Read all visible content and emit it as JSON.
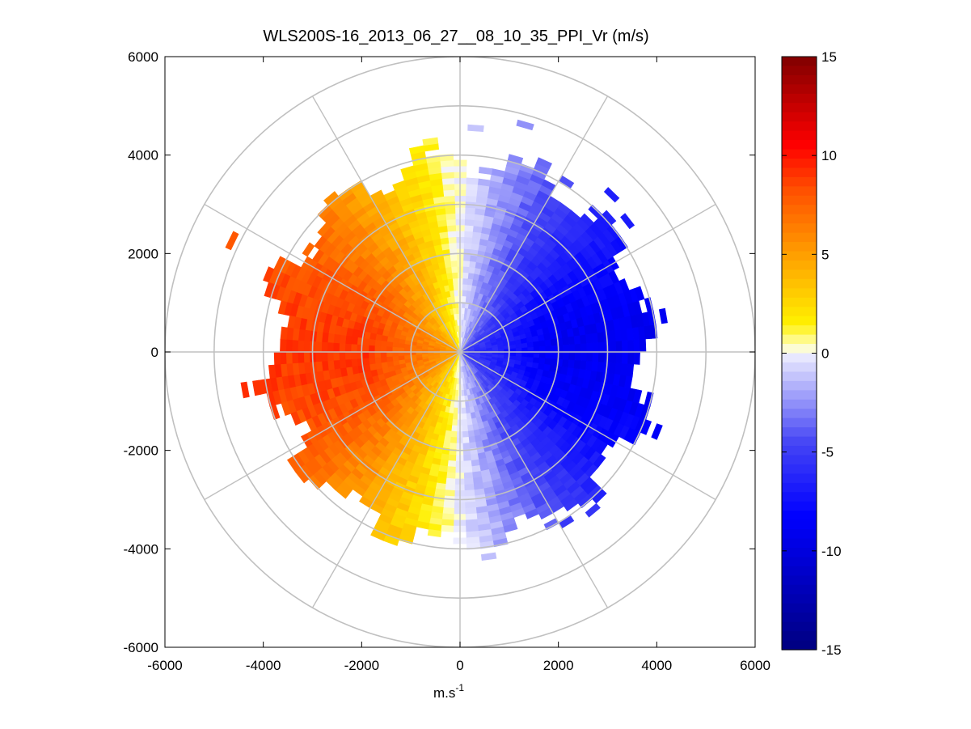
{
  "chart_data": {
    "type": "heatmap",
    "subtype": "polar-ppi",
    "title": "WLS200S-16_2013_06_27__08_10_35_PPI_Vr (m/s)",
    "xlabel": "m.s",
    "xlabel_superscript": "-1",
    "ylabel": "",
    "xlim": [
      -6000,
      6000
    ],
    "ylim": [
      -6000,
      6000
    ],
    "x_ticks": [
      "-6000",
      "-4000",
      "-2000",
      "0",
      "2000",
      "4000",
      "6000"
    ],
    "y_ticks": [
      "6000",
      "4000",
      "2000",
      "0",
      "-2000",
      "-4000",
      "-6000"
    ],
    "polar_grid": {
      "ring_radii": [
        1000,
        2000,
        3000,
        4000,
        5000,
        6000
      ],
      "spoke_angles_deg": [
        0,
        30,
        60,
        90,
        120,
        150,
        180,
        210,
        240,
        270,
        300,
        330
      ]
    },
    "colorbar": {
      "range": [
        -15,
        15
      ],
      "ticks": [
        "15",
        "10",
        "5",
        "0",
        "-5",
        "-10",
        "-15"
      ]
    },
    "field_model": {
      "description": "Radial velocity approx 9*cos(angle from -x axis) m/s, positive (warm) toward west, negative (blue) toward east",
      "amplitude": 9,
      "max_range_m": 3800,
      "sparse_max_range_m": 5200
    },
    "colors": {
      "ring": "#c0c0c0",
      "axis": "#000000"
    }
  }
}
